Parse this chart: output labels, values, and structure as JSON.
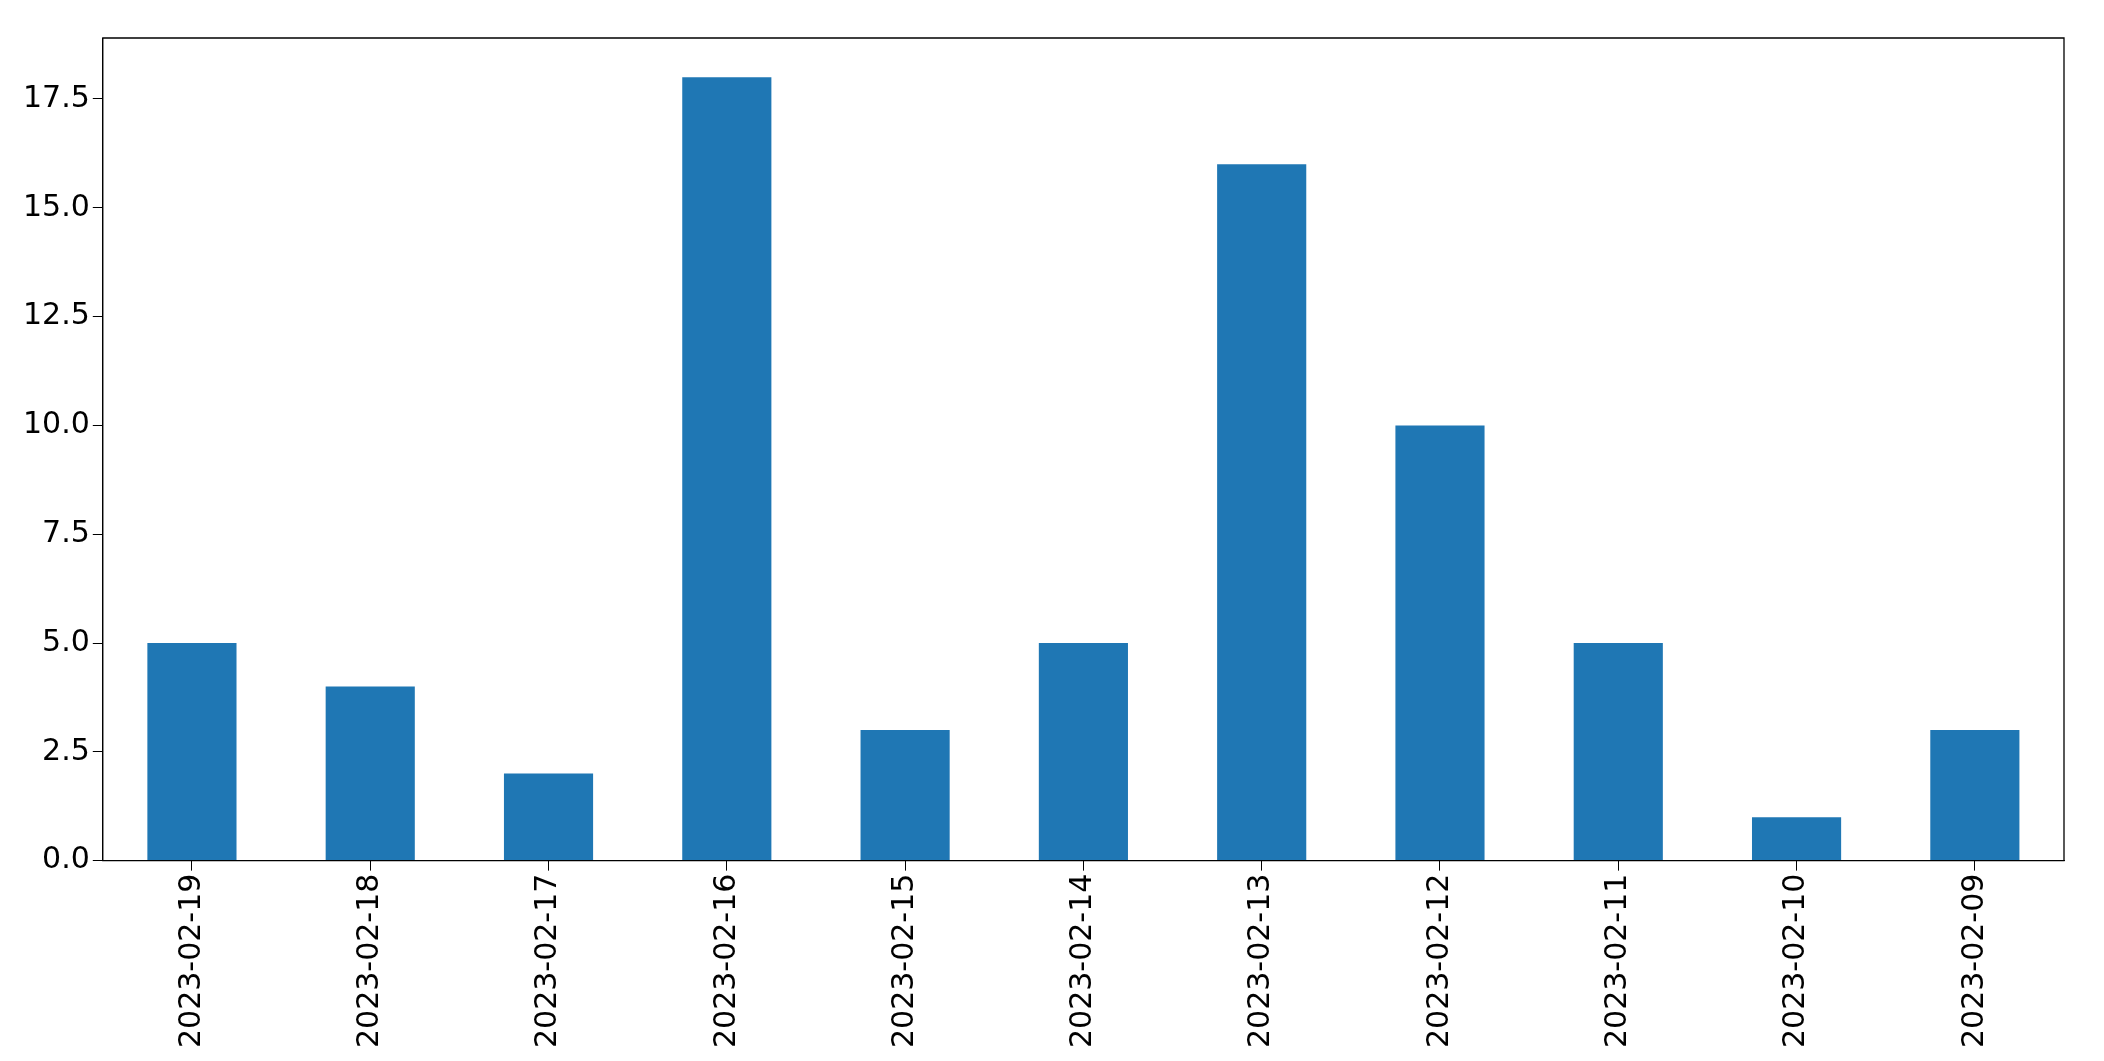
{
  "chart_data": {
    "type": "bar",
    "categories": [
      "2023-02-19",
      "2023-02-18",
      "2023-02-17",
      "2023-02-16",
      "2023-02-15",
      "2023-02-14",
      "2023-02-13",
      "2023-02-12",
      "2023-02-11",
      "2023-02-10",
      "2023-02-09"
    ],
    "values": [
      5,
      4,
      2,
      18,
      3,
      5,
      16,
      10,
      5,
      1,
      3
    ],
    "color": "#1f77b4",
    "ylim": [
      0,
      18.9
    ],
    "yticks": [
      {
        "value": 0,
        "label": "0.0"
      },
      {
        "value": 2.5,
        "label": "2.5"
      },
      {
        "value": 5,
        "label": "5.0"
      },
      {
        "value": 7.5,
        "label": "7.5"
      },
      {
        "value": 10,
        "label": "10.0"
      },
      {
        "value": 12.5,
        "label": "12.5"
      },
      {
        "value": 15,
        "label": "15.0"
      },
      {
        "value": 17.5,
        "label": "17.5"
      }
    ],
    "grid": false,
    "legend": false
  }
}
